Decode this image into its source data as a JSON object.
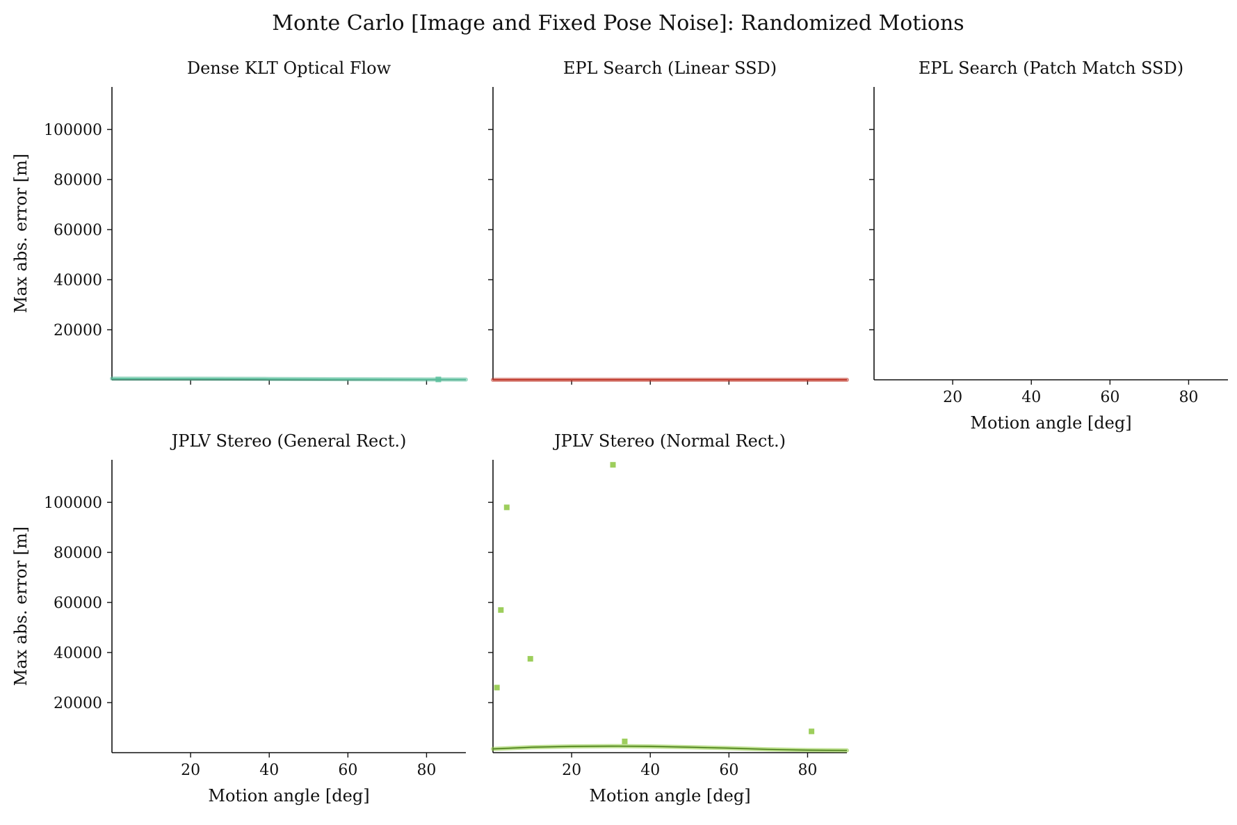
{
  "figure": {
    "title": "Monte Carlo [Image and Fixed Pose Noise]: Randomized Motions"
  },
  "chart_data": [
    {
      "type": "scatter",
      "title": "Dense KLT Optical Flow",
      "xlabel": "",
      "ylabel": "Max abs. error [m]",
      "xlim": [
        0,
        90
      ],
      "ylim": [
        0,
        117000
      ],
      "xticks": [
        20,
        40,
        60,
        80
      ],
      "xtick_labels_visible": false,
      "yticks": [
        20000,
        40000,
        60000,
        80000,
        100000
      ],
      "ytick_labels_visible": true,
      "color": "#5bbf9c",
      "trend": {
        "x": [
          0,
          20,
          40,
          60,
          80,
          90
        ],
        "y": [
          500,
          450,
          350,
          250,
          150,
          100
        ]
      },
      "points": [
        {
          "x": 83,
          "y": 150
        }
      ]
    },
    {
      "type": "scatter",
      "title": "EPL Search (Linear SSD)",
      "xlabel": "",
      "ylabel": "",
      "xlim": [
        0,
        90
      ],
      "ylim": [
        0,
        117000
      ],
      "xticks": [
        20,
        40,
        60,
        80
      ],
      "xtick_labels_visible": false,
      "yticks": [
        20000,
        40000,
        60000,
        80000,
        100000
      ],
      "ytick_labels_visible": false,
      "color": "#c0392b",
      "trend": {
        "x": [
          0,
          90
        ],
        "y": [
          0,
          0
        ]
      },
      "points": []
    },
    {
      "type": "scatter",
      "title": "EPL Search (Patch Match SSD)",
      "xlabel": "Motion angle [deg]",
      "ylabel": "",
      "xlim": [
        0,
        90
      ],
      "ylim": [
        0,
        117000
      ],
      "xticks": [
        20,
        40,
        60,
        80
      ],
      "xtick_labels_visible": true,
      "yticks": [
        20000,
        40000,
        60000,
        80000,
        100000
      ],
      "ytick_labels_visible": false,
      "color": "#3a6fb0",
      "trend": {
        "x": [],
        "y": []
      },
      "points": []
    },
    {
      "type": "scatter",
      "title": "JPLV Stereo (General Rect.)",
      "xlabel": "Motion angle [deg]",
      "ylabel": "Max abs. error [m]",
      "xlim": [
        0,
        90
      ],
      "ylim": [
        0,
        117000
      ],
      "xticks": [
        20,
        40,
        60,
        80
      ],
      "xtick_labels_visible": true,
      "yticks": [
        20000,
        40000,
        60000,
        80000,
        100000
      ],
      "ytick_labels_visible": true,
      "color": "#8e44ad",
      "trend": {
        "x": [],
        "y": []
      },
      "points": []
    },
    {
      "type": "scatter",
      "title": "JPLV Stereo (Normal Rect.)",
      "xlabel": "Motion angle [deg]",
      "ylabel": "",
      "xlim": [
        0,
        90
      ],
      "ylim": [
        0,
        117000
      ],
      "xticks": [
        20,
        40,
        60,
        80
      ],
      "xtick_labels_visible": true,
      "yticks": [
        20000,
        40000,
        60000,
        80000,
        100000
      ],
      "ytick_labels_visible": false,
      "color": "#8cc63f",
      "trend": {
        "x": [
          0,
          10,
          20,
          30,
          40,
          50,
          60,
          70,
          80,
          90
        ],
        "y": [
          1500,
          2200,
          2500,
          2600,
          2500,
          2200,
          1800,
          1300,
          1000,
          900
        ]
      },
      "points": [
        {
          "x": 30.5,
          "y": 115000
        },
        {
          "x": 3.5,
          "y": 98000
        },
        {
          "x": 2,
          "y": 57000
        },
        {
          "x": 9.5,
          "y": 37500
        },
        {
          "x": 1,
          "y": 26000
        },
        {
          "x": 33.5,
          "y": 4500
        },
        {
          "x": 81,
          "y": 8500
        }
      ]
    }
  ]
}
